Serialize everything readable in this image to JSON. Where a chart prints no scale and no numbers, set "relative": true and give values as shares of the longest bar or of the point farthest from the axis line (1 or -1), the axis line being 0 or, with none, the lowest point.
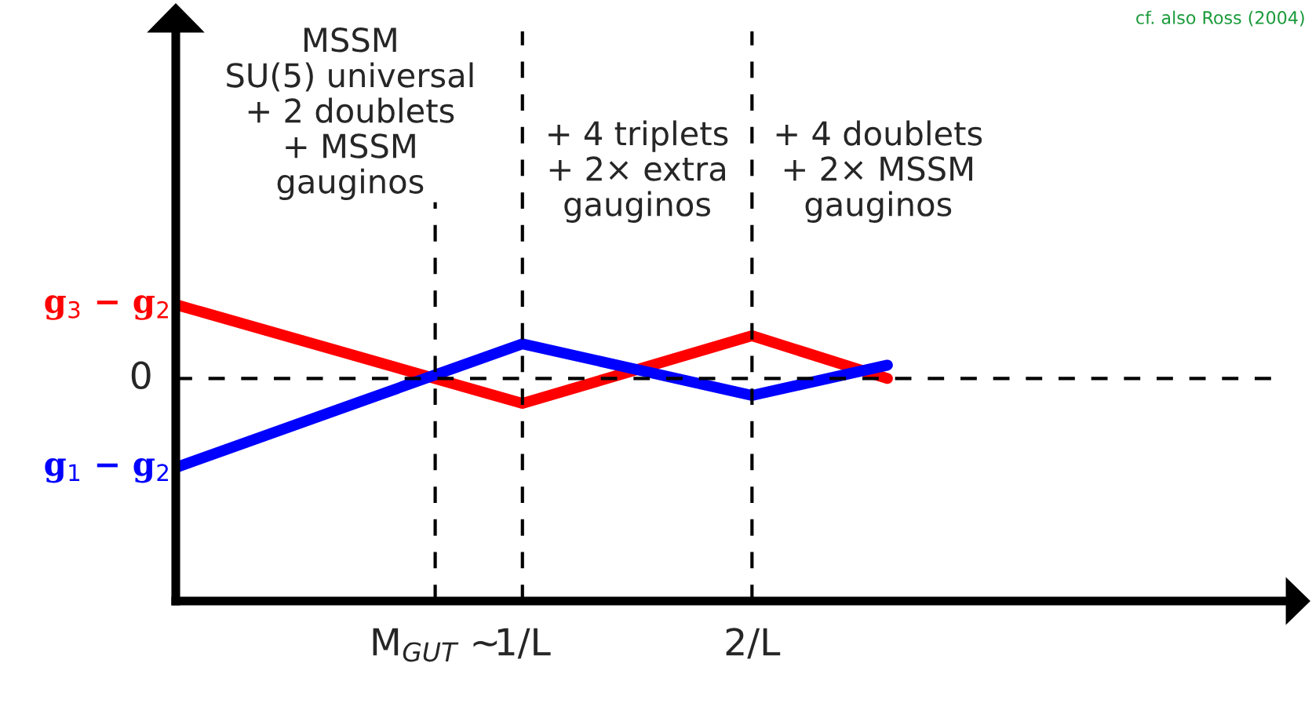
{
  "chart_data": {
    "type": "line",
    "relative": true,
    "legend": false,
    "grid": false,
    "marker": "none",
    "line_style": "solid",
    "xlim": [
      -0.51,
      4.33
    ],
    "xticks": [
      {
        "value": 0.62,
        "label": "M$_{GUT}$ ~"
      },
      {
        "value": 1,
        "label": "1/L"
      },
      {
        "value": 2,
        "label": "2/L"
      }
    ],
    "series": [
      {
        "name": "g$_{3}$ − g$_{2}$",
        "color": "#ff0000",
        "x": [
          -0.51,
          1,
          2,
          2.59
        ],
        "values": [
          0.83,
          -0.28,
          0.48,
          0
        ]
      },
      {
        "name": "g$_{1}$ − g$_{2}$",
        "color": "#0000ff",
        "x": [
          -0.51,
          1,
          2,
          2.59
        ],
        "values": [
          -1,
          0.39,
          -0.19,
          0.15
        ]
      }
    ],
    "ref_lines": [
      {
        "axis": "y",
        "value": 0,
        "label": "0",
        "line_style": "dashed"
      },
      {
        "axis": "x",
        "value": 0.62,
        "line_style": "dashed"
      },
      {
        "axis": "x",
        "value": 1,
        "line_style": "dashed"
      },
      {
        "axis": "x",
        "value": 2,
        "line_style": "dashed"
      }
    ],
    "annotations": [
      "cf. also Ross (2004)",
      "MSSM\nSU(5) universal\n+ 2 doublets\n+ MSSM\ngauginos",
      "+ 4 triplets\n+ 2× extra\ngauginos",
      "+ 4 doublets\n+ 2× MSSM\ngauginos"
    ]
  }
}
